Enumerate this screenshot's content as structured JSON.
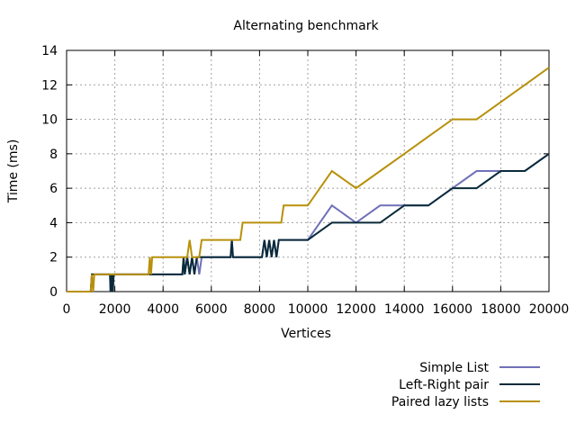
{
  "chart_data": {
    "type": "line",
    "title": "Alternating benchmark",
    "xlabel": "Vertices",
    "ylabel": "Time (ms)",
    "xlim": [
      0,
      20000
    ],
    "ylim": [
      0,
      14
    ],
    "x_ticks": [
      0,
      2000,
      4000,
      6000,
      8000,
      10000,
      12000,
      14000,
      16000,
      18000,
      20000
    ],
    "y_ticks": [
      0,
      2,
      4,
      6,
      8,
      10,
      12,
      14
    ],
    "grid": true,
    "legend_position": "bottom-right, outside plot",
    "series": [
      {
        "name": "Simple List",
        "color": "#7070b8",
        "points": [
          [
            0,
            0
          ],
          [
            1000,
            0
          ],
          [
            1050,
            1
          ],
          [
            1800,
            1
          ],
          [
            1820,
            0
          ],
          [
            1840,
            1
          ],
          [
            1880,
            0
          ],
          [
            1900,
            1
          ],
          [
            3400,
            1
          ],
          [
            4800,
            1
          ],
          [
            4850,
            2
          ],
          [
            4900,
            1
          ],
          [
            5000,
            2
          ],
          [
            5100,
            1
          ],
          [
            5200,
            2
          ],
          [
            5300,
            1
          ],
          [
            5400,
            2
          ],
          [
            5500,
            1
          ],
          [
            5600,
            2
          ],
          [
            6800,
            2
          ],
          [
            6850,
            3
          ],
          [
            6900,
            2
          ],
          [
            8100,
            2
          ],
          [
            8200,
            3
          ],
          [
            8300,
            2
          ],
          [
            8400,
            3
          ],
          [
            8500,
            2
          ],
          [
            8600,
            3
          ],
          [
            8700,
            2
          ],
          [
            8800,
            3
          ],
          [
            10000,
            3
          ],
          [
            11000,
            5
          ],
          [
            12000,
            4
          ],
          [
            13000,
            5
          ],
          [
            14000,
            5
          ],
          [
            15000,
            5
          ],
          [
            16000,
            6
          ],
          [
            17000,
            7
          ],
          [
            18000,
            7
          ],
          [
            19000,
            7
          ],
          [
            20000,
            8
          ]
        ]
      },
      {
        "name": "Left-Right pair",
        "color": "#0a2a3a",
        "points": [
          [
            0,
            0
          ],
          [
            1000,
            0
          ],
          [
            1050,
            1
          ],
          [
            1800,
            1
          ],
          [
            1820,
            0
          ],
          [
            1840,
            1
          ],
          [
            1880,
            0
          ],
          [
            1900,
            1
          ],
          [
            1920,
            0
          ],
          [
            1950,
            1
          ],
          [
            3400,
            1
          ],
          [
            4800,
            1
          ],
          [
            4850,
            2
          ],
          [
            4900,
            1
          ],
          [
            5000,
            2
          ],
          [
            5100,
            1
          ],
          [
            5200,
            2
          ],
          [
            5300,
            1
          ],
          [
            5400,
            2
          ],
          [
            6800,
            2
          ],
          [
            6850,
            3
          ],
          [
            6900,
            2
          ],
          [
            8100,
            2
          ],
          [
            8200,
            3
          ],
          [
            8300,
            2
          ],
          [
            8400,
            3
          ],
          [
            8500,
            2
          ],
          [
            8600,
            3
          ],
          [
            8700,
            2
          ],
          [
            8800,
            3
          ],
          [
            10000,
            3
          ],
          [
            11000,
            4
          ],
          [
            12000,
            4
          ],
          [
            13000,
            4
          ],
          [
            14000,
            5
          ],
          [
            15000,
            5
          ],
          [
            16000,
            6
          ],
          [
            17000,
            6
          ],
          [
            18000,
            7
          ],
          [
            19000,
            7
          ],
          [
            20000,
            8
          ]
        ]
      },
      {
        "name": "Paired lazy lists",
        "color": "#b8900a",
        "points": [
          [
            0,
            0
          ],
          [
            1000,
            0
          ],
          [
            1050,
            1
          ],
          [
            1100,
            0
          ],
          [
            1150,
            1
          ],
          [
            3400,
            1
          ],
          [
            3450,
            2
          ],
          [
            3400,
            1
          ],
          [
            3450,
            2
          ],
          [
            3500,
            1
          ],
          [
            3550,
            2
          ],
          [
            5000,
            2
          ],
          [
            5100,
            3
          ],
          [
            5200,
            2
          ],
          [
            5500,
            2
          ],
          [
            5600,
            3
          ],
          [
            7200,
            3
          ],
          [
            7300,
            4
          ],
          [
            8900,
            4
          ],
          [
            9000,
            5
          ],
          [
            10000,
            5
          ],
          [
            11000,
            7
          ],
          [
            12000,
            6
          ],
          [
            13000,
            7
          ],
          [
            14000,
            8
          ],
          [
            15000,
            9
          ],
          [
            16000,
            10
          ],
          [
            17000,
            10
          ],
          [
            18000,
            11
          ],
          [
            19000,
            12
          ],
          [
            20000,
            13
          ]
        ]
      }
    ]
  }
}
